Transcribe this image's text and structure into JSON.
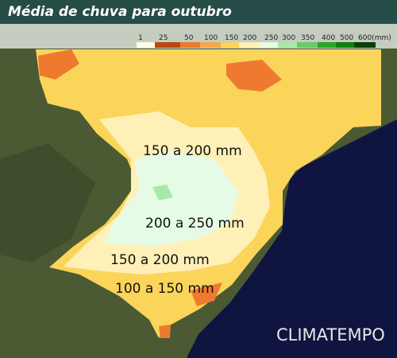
{
  "header": {
    "title": "Média de chuva para outubro"
  },
  "legend": {
    "items": [
      {
        "label": "1",
        "color": "#fffbe8"
      },
      {
        "label": "25",
        "color": "#b84a10"
      },
      {
        "label": "50",
        "color": "#ee7a30"
      },
      {
        "label": "100",
        "color": "#f8a848"
      },
      {
        "label": "150",
        "color": "#fbd45a"
      },
      {
        "label": "200",
        "color": "#fff0b8"
      },
      {
        "label": "250",
        "color": "#e6fbe6"
      },
      {
        "label": "300",
        "color": "#a8e8a8"
      },
      {
        "label": "350",
        "color": "#6cc86c"
      },
      {
        "label": "400",
        "color": "#28a828"
      },
      {
        "label": "500",
        "color": "#108010"
      },
      {
        "label": "600(mm)",
        "color": "#0a400a"
      }
    ]
  },
  "regions": [
    {
      "label": "150 a 200 mm"
    },
    {
      "label": "200 a 250 mm"
    },
    {
      "label": "150 a 200 mm"
    },
    {
      "label": "100 a 150 mm"
    }
  ],
  "logo": "CLIMATEMPO"
}
